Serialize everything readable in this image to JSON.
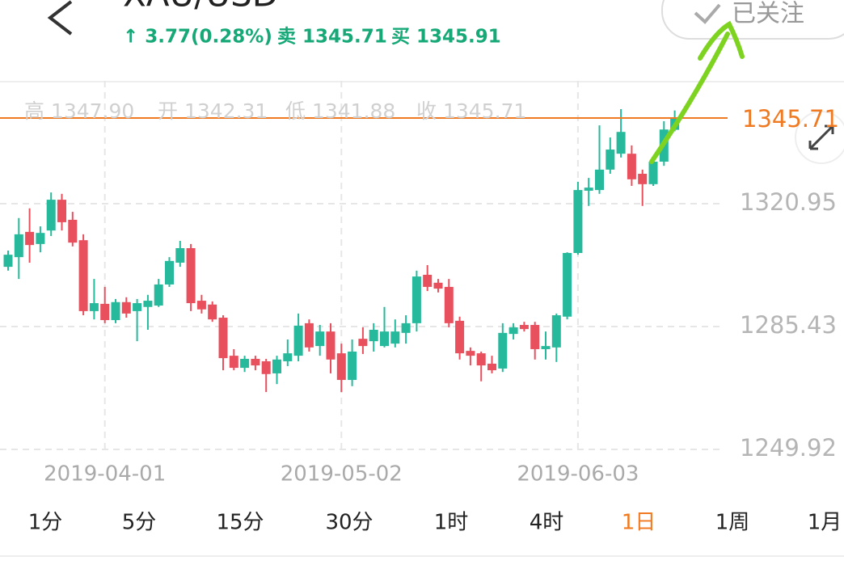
{
  "header": {
    "title": "XAU/USD",
    "change": "↑ 3.77(0.28%)",
    "sell": "卖 1345.71",
    "buy": "买 1345.91",
    "follow_button": "已关注"
  },
  "ohlc_summary": [
    "高 1347.90",
    "开 1342.31",
    "低 1341.88",
    "收 1345.71"
  ],
  "timeframes": {
    "items": [
      "1分",
      "5分",
      "15分",
      "30分",
      "1时",
      "4时",
      "1日",
      "1周",
      "1月"
    ],
    "active": 6
  },
  "chart_data": {
    "type": "candlestick",
    "up_color": "#27b99b",
    "down_color": "#e9505e",
    "last_price": 1345.71,
    "last_price_color": "#f07a22",
    "categories": [
      null,
      null,
      null,
      null,
      null,
      null,
      null,
      null,
      null,
      "2019-04-01",
      null,
      null,
      null,
      null,
      null,
      null,
      null,
      null,
      null,
      null,
      null,
      null,
      null,
      null,
      null,
      null,
      null,
      null,
      null,
      null,
      null,
      "2019-05-02",
      null,
      null,
      null,
      null,
      null,
      null,
      null,
      null,
      null,
      null,
      null,
      null,
      null,
      null,
      null,
      null,
      null,
      null,
      null,
      null,
      null,
      "2019-06-03",
      null,
      null,
      null,
      null,
      null,
      null,
      null,
      null,
      null
    ],
    "open": [
      1302.7,
      1305.5,
      1312.8,
      1309.3,
      1313.2,
      1322.1,
      1316.3,
      1310.4,
      1289.9,
      1292.0,
      1287.3,
      1292.5,
      1289.9,
      1291.1,
      1291.5,
      1297.6,
      1303.9,
      1308.1,
      1292.9,
      1291.8,
      1288.0,
      1277.0,
      1273.5,
      1276.1,
      1275.4,
      1271.9,
      1275.4,
      1277.0,
      1286.4,
      1279.8,
      1284.0,
      1277.7,
      1270.0,
      1281.9,
      1281.2,
      1279.8,
      1280.5,
      1283.6,
      1286.4,
      1300.4,
      1298.1,
      1296.9,
      1287.1,
      1278.4,
      1277.7,
      1274.7,
      1273.3,
      1283.3,
      1285.9,
      1285.9,
      1278.9,
      1279.4,
      1288.3,
      1306.7,
      1324.7,
      1324.9,
      1330.8,
      1335.4,
      1335.4,
      1329.6,
      1326.6,
      1333.1,
      1342.31
    ],
    "high": [
      1307.4,
      1316.8,
      1319.6,
      1314.4,
      1324.2,
      1323.8,
      1318.6,
      1312.1,
      1299.2,
      1296.9,
      1293.4,
      1293.9,
      1293.4,
      1294.6,
      1299.2,
      1305.5,
      1310.2,
      1309.3,
      1294.6,
      1292.7,
      1288.7,
      1278.9,
      1277.0,
      1277.0,
      1276.1,
      1277.0,
      1281.7,
      1289.2,
      1287.5,
      1285.9,
      1286.4,
      1280.5,
      1281.7,
      1285.2,
      1286.4,
      1291.1,
      1287.5,
      1288.7,
      1301.6,
      1303.2,
      1299.2,
      1299.2,
      1288.3,
      1279.4,
      1278.2,
      1277.0,
      1286.4,
      1286.4,
      1286.8,
      1286.8,
      1284.0,
      1289.2,
      1306.9,
      1327.3,
      1328.4,
      1343.6,
      1340.1,
      1348.3,
      1337.8,
      1330.8,
      1334.3,
      1344.8,
      1347.9
    ],
    "low": [
      1301.6,
      1299.2,
      1303.9,
      1306.9,
      1311.6,
      1313.2,
      1308.6,
      1288.7,
      1287.5,
      1286.4,
      1286.4,
      1288.0,
      1281.2,
      1284.5,
      1291.1,
      1296.9,
      1302.7,
      1289.9,
      1289.2,
      1286.8,
      1272.8,
      1272.8,
      1272.3,
      1272.8,
      1266.5,
      1268.8,
      1274.0,
      1275.4,
      1278.2,
      1277.0,
      1271.9,
      1266.5,
      1268.2,
      1277.5,
      1278.2,
      1279.4,
      1279.4,
      1280.5,
      1284.0,
      1295.7,
      1295.3,
      1285.2,
      1275.9,
      1274.2,
      1269.6,
      1271.9,
      1272.3,
      1281.7,
      1284.0,
      1275.9,
      1275.9,
      1275.2,
      1287.5,
      1306.2,
      1320.3,
      1323.8,
      1329.6,
      1334.3,
      1326.1,
      1320.3,
      1326.1,
      1331.9,
      1341.88
    ],
    "close": [
      1306.2,
      1312.1,
      1309.0,
      1312.5,
      1322.1,
      1315.6,
      1309.7,
      1289.9,
      1292.2,
      1287.3,
      1292.5,
      1289.2,
      1292.2,
      1292.9,
      1297.6,
      1304.4,
      1308.1,
      1292.2,
      1290.4,
      1287.5,
      1276.3,
      1273.5,
      1276.1,
      1274.2,
      1271.7,
      1275.9,
      1277.7,
      1285.7,
      1279.4,
      1284.0,
      1275.9,
      1270.0,
      1278.2,
      1279.8,
      1284.5,
      1284.0,
      1284.0,
      1286.4,
      1299.9,
      1296.9,
      1296.4,
      1286.4,
      1277.7,
      1277.0,
      1274.2,
      1272.8,
      1283.6,
      1285.2,
      1284.7,
      1278.9,
      1279.8,
      1288.7,
      1306.7,
      1324.9,
      1325.6,
      1330.8,
      1336.6,
      1341.7,
      1328.0,
      1326.6,
      1333.1,
      1342.4,
      1345.71
    ],
    "ylim": [
      1249.92,
      1356.47
    ],
    "yticks": [
      1249.92,
      1285.43,
      1320.95
    ],
    "grid": true
  }
}
